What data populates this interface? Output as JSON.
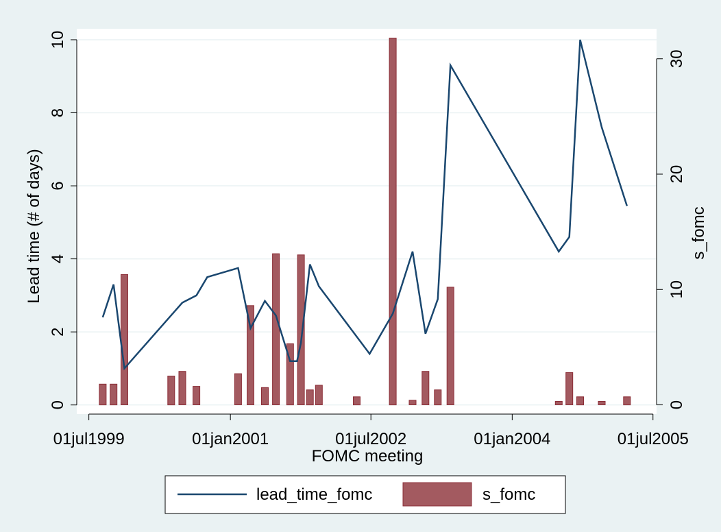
{
  "chart_data": {
    "type": "bar+line",
    "title": "",
    "xlabel": "FOMC meeting",
    "ylabel_left": "Lead time (# of days)",
    "ylabel_right": "s_fomc",
    "x_ticks": [
      "01jul1999",
      "01jan2001",
      "01jul2002",
      "01jan2004",
      "01jul2005"
    ],
    "x_range": [
      "1999-05-15",
      "2005-07-15"
    ],
    "y_left": {
      "ticks": [
        "0",
        "2",
        "4",
        "6",
        "8",
        "10"
      ],
      "range": [
        -0.25,
        10.3
      ]
    },
    "y_right": {
      "ticks": [
        "0",
        "10",
        "20",
        "30"
      ],
      "range": [
        -0.8,
        32.6
      ]
    },
    "grid": true,
    "legend": {
      "position": "bottom",
      "entries": [
        "lead_time_fomc",
        "s_fomc"
      ]
    },
    "colors": {
      "line": "#1a476f",
      "bar": "#a35a60",
      "bar_edge": "#8b2e37",
      "plot_bg": "#ffffff",
      "page_bg": "#eaf2f3",
      "grid": "#eaf2f3"
    },
    "series": [
      {
        "name": "lead_time_fomc",
        "type": "line",
        "axis": "left",
        "points": [
          [
            "1999-08-24",
            2.4
          ],
          [
            "1999-10-05",
            3.3
          ],
          [
            "1999-11-16",
            1.0
          ],
          [
            "2000-06-28",
            2.8
          ],
          [
            "2000-08-22",
            3.0
          ],
          [
            "2000-10-03",
            3.5
          ],
          [
            "2001-01-31",
            3.75
          ],
          [
            "2001-03-20",
            2.1
          ],
          [
            "2001-05-15",
            2.85
          ],
          [
            "2001-06-27",
            2.45
          ],
          [
            "2001-08-21",
            1.2
          ],
          [
            "2001-09-17",
            1.2
          ],
          [
            "2001-10-02",
            1.7
          ],
          [
            "2001-11-06",
            3.85
          ],
          [
            "2001-12-11",
            3.25
          ],
          [
            "2002-06-26",
            1.4
          ],
          [
            "2002-09-24",
            2.5
          ],
          [
            "2002-12-10",
            4.2
          ],
          [
            "2003-01-29",
            1.95
          ],
          [
            "2003-03-18",
            2.9
          ],
          [
            "2003-05-06",
            9.3
          ],
          [
            "2004-06-30",
            4.2
          ],
          [
            "2004-08-10",
            4.6
          ],
          [
            "2004-09-21",
            10.0
          ],
          [
            "2004-12-14",
            7.6
          ],
          [
            "2005-03-22",
            5.45
          ]
        ]
      },
      {
        "name": "s_fomc",
        "type": "bar",
        "axis": "right",
        "points": [
          [
            "1999-08-24",
            1.8
          ],
          [
            "1999-10-05",
            1.8
          ],
          [
            "1999-11-16",
            11.3
          ],
          [
            "2000-05-16",
            2.5
          ],
          [
            "2000-06-28",
            2.9
          ],
          [
            "2000-08-22",
            1.6
          ],
          [
            "2001-01-31",
            2.7
          ],
          [
            "2001-03-20",
            8.6
          ],
          [
            "2001-05-15",
            1.5
          ],
          [
            "2001-06-27",
            13.1
          ],
          [
            "2001-08-21",
            5.3
          ],
          [
            "2001-10-02",
            13.0
          ],
          [
            "2001-11-06",
            1.3
          ],
          [
            "2001-12-11",
            1.7
          ],
          [
            "2002-05-07",
            0.7
          ],
          [
            "2002-09-24",
            31.8
          ],
          [
            "2002-12-10",
            0.4
          ],
          [
            "2003-01-29",
            2.9
          ],
          [
            "2003-03-18",
            1.3
          ],
          [
            "2003-05-06",
            10.2
          ],
          [
            "2004-06-30",
            0.3
          ],
          [
            "2004-08-10",
            2.8
          ],
          [
            "2004-09-21",
            0.7
          ],
          [
            "2004-12-14",
            0.3
          ],
          [
            "2005-03-22",
            0.7
          ]
        ]
      }
    ]
  }
}
